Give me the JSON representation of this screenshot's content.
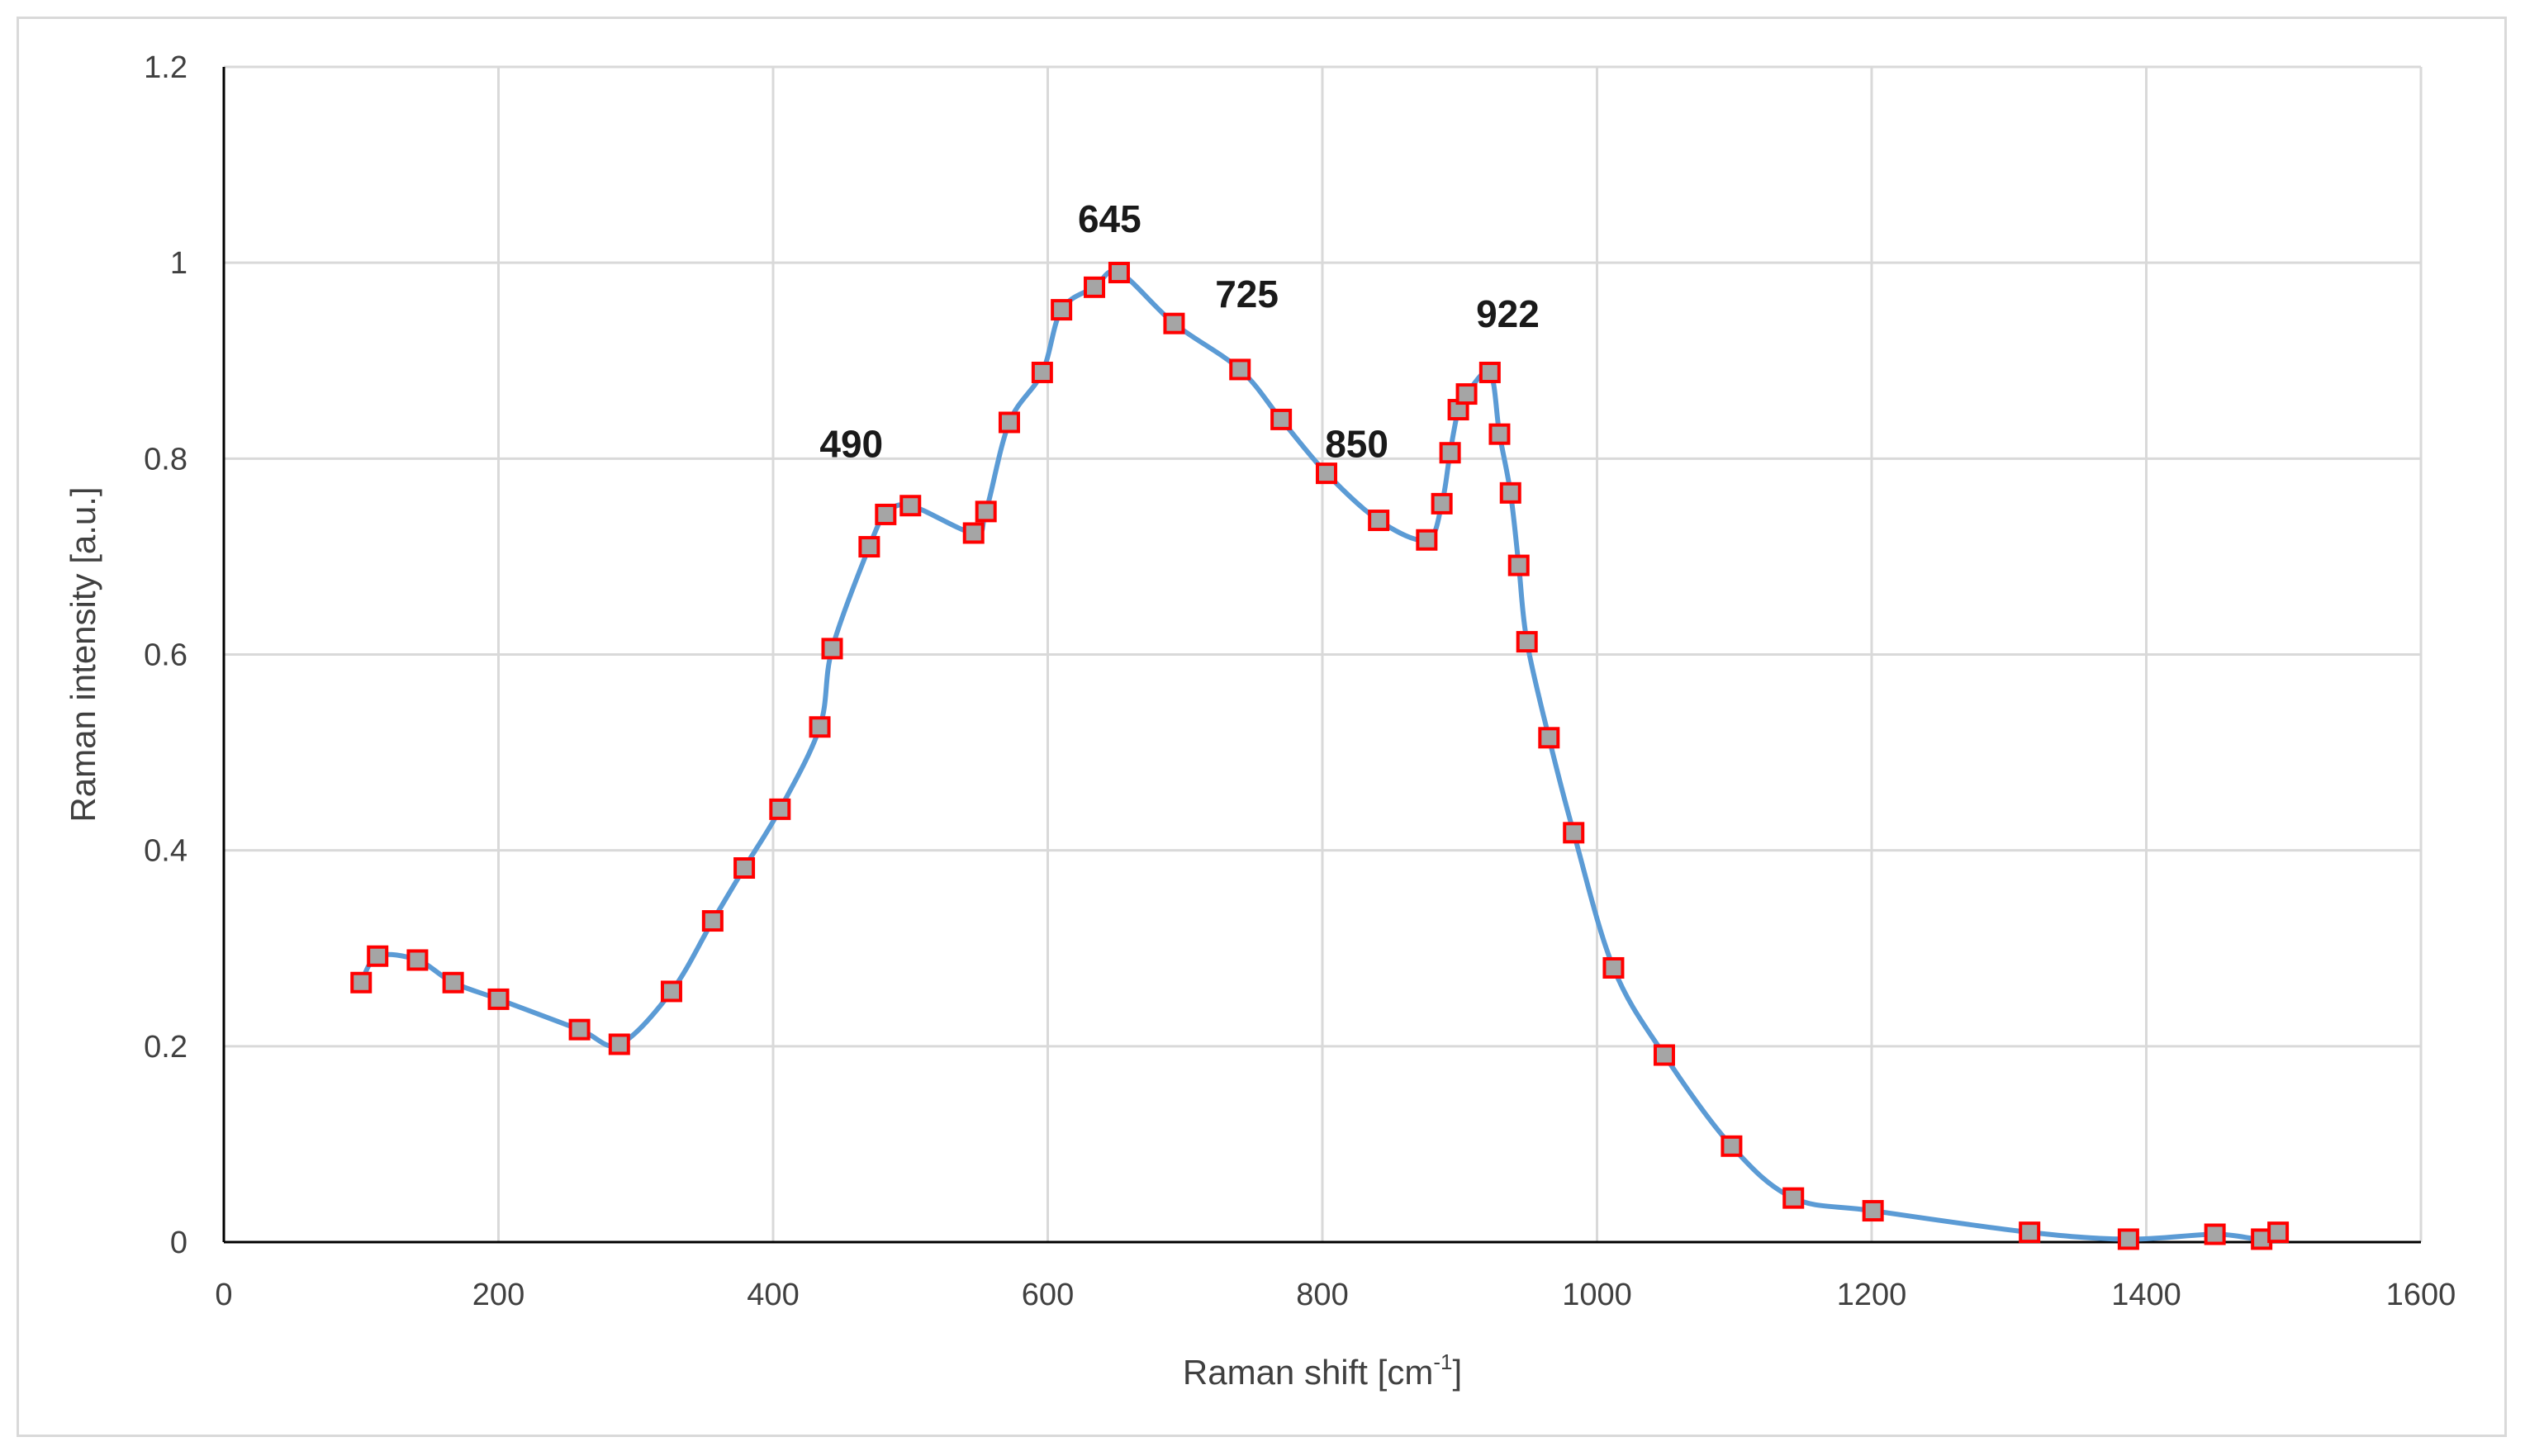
{
  "chart_data": {
    "type": "line",
    "title": "",
    "xlabel": "Raman shift [cm",
    "xlabel_sup": "-1",
    "xlabel_suffix": "]",
    "ylabel": "Raman intensity [a.u.]",
    "xlim": [
      0,
      1600
    ],
    "ylim": [
      0,
      1.2
    ],
    "x_ticks": [
      0,
      200,
      400,
      600,
      800,
      1000,
      1200,
      1400,
      1600
    ],
    "y_ticks": [
      0,
      0.2,
      0.4,
      0.6,
      0.8,
      1,
      1.2
    ],
    "x_tick_labels": [
      "0",
      "200",
      "400",
      "600",
      "800",
      "1000",
      "1200",
      "1400",
      "1600"
    ],
    "y_tick_labels": [
      "0",
      "0.2",
      "0.4",
      "0.6",
      "0.8",
      "1",
      "1.2"
    ],
    "grid": true,
    "legend": false,
    "line_color": "#5b9bd5",
    "marker_fill": "#a5a5a5",
    "marker_edge": "#ff0000",
    "series": [
      {
        "x": [
          100,
          112,
          141,
          167,
          200,
          259,
          288,
          326,
          356,
          379,
          405,
          434,
          443,
          470,
          482,
          500,
          546,
          555,
          572,
          596,
          610,
          634,
          652,
          692,
          740,
          770,
          803,
          841,
          876,
          887,
          893,
          899,
          905,
          922,
          929,
          937,
          943,
          949,
          965,
          983,
          1012,
          1049,
          1098,
          1143,
          1201,
          1315,
          1387,
          1450,
          1484,
          1496
        ],
        "y": [
          0.265,
          0.292,
          0.288,
          0.265,
          0.248,
          0.217,
          0.202,
          0.256,
          0.328,
          0.382,
          0.442,
          0.526,
          0.606,
          0.71,
          0.743,
          0.752,
          0.724,
          0.746,
          0.837,
          0.888,
          0.952,
          0.975,
          0.99,
          0.938,
          0.891,
          0.84,
          0.785,
          0.737,
          0.717,
          0.754,
          0.806,
          0.85,
          0.866,
          0.888,
          0.825,
          0.765,
          0.691,
          0.613,
          0.515,
          0.418,
          0.28,
          0.191,
          0.098,
          0.045,
          0.032,
          0.01,
          0.003,
          0.008,
          0.003,
          0.01
        ]
      }
    ],
    "annotations": [
      {
        "text": "490",
        "x": 457,
        "y": 0.815
      },
      {
        "text": "645",
        "x": 645,
        "y": 1.045
      },
      {
        "text": "725",
        "x": 745,
        "y": 0.968
      },
      {
        "text": "850",
        "x": 825,
        "y": 0.815
      },
      {
        "text": "922",
        "x": 935,
        "y": 0.948
      }
    ]
  }
}
